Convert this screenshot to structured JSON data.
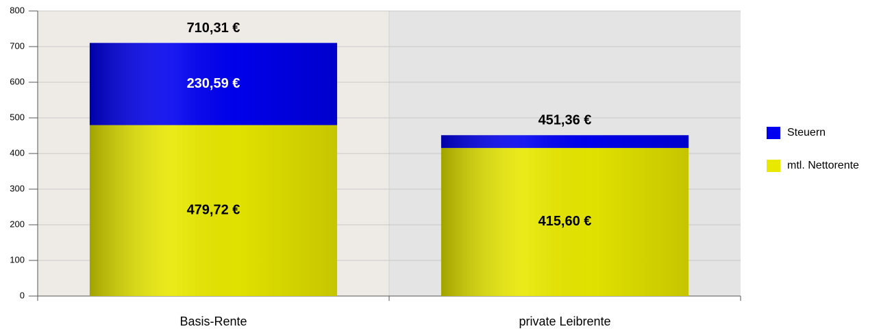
{
  "chart_data": {
    "type": "stacked_bar",
    "categories": [
      "Basis-Rente",
      "private Leibrente"
    ],
    "series": [
      {
        "name": "mtl. Nettorente",
        "color": "#e8e800",
        "label_color": "#000000",
        "values": [
          479.72,
          415.6
        ],
        "value_labels": [
          "479,72 €",
          "415,60 €"
        ]
      },
      {
        "name": "Steuern",
        "color": "#0000f0",
        "label_color": "#ffffff",
        "values": [
          230.59,
          35.76
        ],
        "value_labels": [
          "230,59 €",
          null
        ]
      }
    ],
    "totals": [
      710.31,
      451.36
    ],
    "totals_labels": [
      "710,31 €",
      "451,36 €"
    ],
    "ylim": [
      0,
      800
    ],
    "yticks": [
      0,
      100,
      200,
      300,
      400,
      500,
      600,
      700,
      800
    ],
    "grid": true,
    "legend": "right"
  }
}
